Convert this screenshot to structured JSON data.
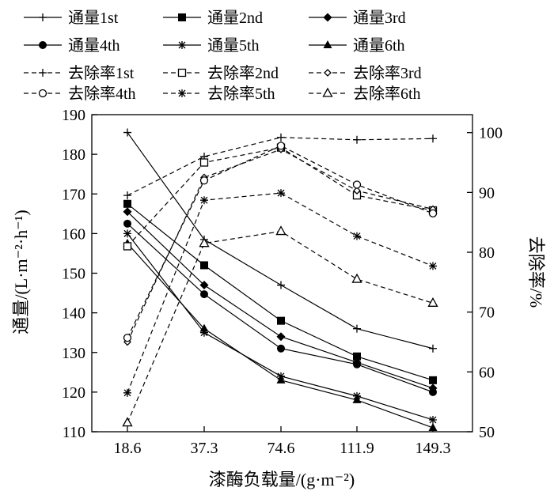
{
  "chart_data": {
    "type": "line",
    "categories": [
      "18.6",
      "37.3",
      "74.6",
      "111.9",
      "149.3"
    ],
    "xlabel": "漆酶负载量/(g·m⁻²)",
    "ylabel_left": "通量/(L·m⁻²·h⁻¹)",
    "ylabel_right": "去除率/%",
    "ylim_left": [
      110,
      190
    ],
    "ylim_right": [
      50,
      103
    ],
    "yticks_left": [
      110,
      120,
      130,
      140,
      150,
      160,
      170,
      180,
      190
    ],
    "yticks_right": [
      50,
      60,
      70,
      80,
      90,
      100
    ],
    "grid": false,
    "legend_position": "top",
    "series": [
      {
        "name": "通量1st",
        "axis": "left",
        "line": "solid",
        "marker": "plus",
        "values": [
          185.5,
          158.5,
          147,
          136,
          131
        ]
      },
      {
        "name": "通量2nd",
        "axis": "left",
        "line": "solid",
        "marker": "square",
        "values": [
          167.5,
          152,
          138,
          129,
          123
        ]
      },
      {
        "name": "通量3rd",
        "axis": "left",
        "line": "solid",
        "marker": "diamond",
        "values": [
          165.5,
          147,
          134,
          127.5,
          121
        ]
      },
      {
        "name": "通量4th",
        "axis": "left",
        "line": "solid",
        "marker": "circle",
        "values": [
          162.5,
          144.7,
          131,
          127,
          120
        ]
      },
      {
        "name": "通量5th",
        "axis": "left",
        "line": "solid",
        "marker": "star",
        "values": [
          160,
          135,
          124,
          119,
          113
        ]
      },
      {
        "name": "通量6th",
        "axis": "left",
        "line": "solid",
        "marker": "triangle",
        "values": [
          157.5,
          136,
          123,
          118,
          111
        ]
      },
      {
        "name": "去除率1st",
        "axis": "right",
        "line": "dashed",
        "marker": "plus",
        "values": [
          89.5,
          96,
          99.2,
          98.8,
          99
        ]
      },
      {
        "name": "去除率2nd",
        "axis": "right",
        "line": "dashed",
        "marker": "square-open",
        "values": [
          81,
          95,
          97.5,
          89.5,
          87
        ]
      },
      {
        "name": "去除率3rd",
        "axis": "right",
        "line": "dashed",
        "marker": "diamond-small",
        "values": [
          65,
          92.5,
          97.2,
          90.3,
          87.2
        ]
      },
      {
        "name": "去除率4th",
        "axis": "right",
        "line": "dashed",
        "marker": "circle-open",
        "values": [
          65.7,
          92,
          97.8,
          91.3,
          86.5
        ]
      },
      {
        "name": "去除率5th",
        "axis": "right",
        "line": "dashed",
        "marker": "star",
        "values": [
          56.5,
          88.7,
          89.9,
          82.7,
          77.7
        ]
      },
      {
        "name": "去除率6th",
        "axis": "right",
        "line": "dashed",
        "marker": "triangle-open",
        "values": [
          51.5,
          81.5,
          83.5,
          75.5,
          71.5
        ]
      }
    ]
  }
}
